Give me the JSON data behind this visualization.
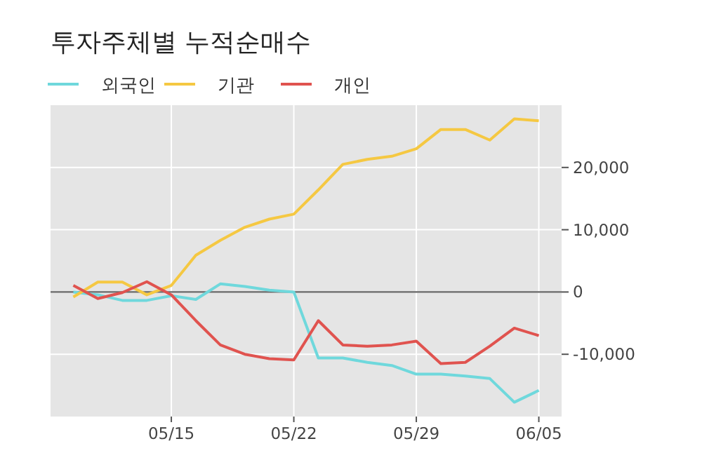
{
  "chart_data": {
    "type": "line",
    "title": "투자주체별 누적순매수",
    "categories": [
      null,
      null,
      null,
      null,
      "05/15",
      null,
      null,
      null,
      null,
      "05/22",
      null,
      null,
      null,
      null,
      "05/29",
      null,
      null,
      null,
      null,
      "06/05"
    ],
    "series": [
      {
        "name": "외국인",
        "color": "#6fd8dc",
        "values": [
          0,
          -450,
          -1350,
          -1350,
          -600,
          -1200,
          1300,
          900,
          300,
          0,
          -10600,
          -10600,
          -11300,
          -11800,
          -13200,
          -13200,
          -13500,
          -13900,
          -17700,
          -15800
        ]
      },
      {
        "name": "기관",
        "color": "#f5c842",
        "values": [
          -800,
          1600,
          1600,
          -450,
          1050,
          5900,
          8300,
          10400,
          11700,
          12500,
          16400,
          20500,
          21300,
          21800,
          23000,
          26100,
          26100,
          24400,
          27800,
          27500
        ]
      },
      {
        "name": "개인",
        "color": "#e0534f",
        "values": [
          1050,
          -1050,
          -100,
          1650,
          -450,
          -4600,
          -8500,
          -10000,
          -10700,
          -10900,
          -4600,
          -8500,
          -8700,
          -8500,
          -7900,
          -11500,
          -11300,
          -8700,
          -5800,
          -7000
        ]
      }
    ],
    "ylim": [
      -20000,
      30000
    ],
    "yticks": [
      {
        "value": -10000,
        "label": "-10,000"
      },
      0,
      {
        "value": 10000,
        "label": "10,000"
      },
      {
        "value": 20000,
        "label": "20,000"
      }
    ],
    "ref_lines": [
      {
        "axis": "y",
        "value": 0,
        "color": "#666666"
      }
    ],
    "grid": true,
    "legend": "top left",
    "marker": "none",
    "line_style": "solid"
  }
}
